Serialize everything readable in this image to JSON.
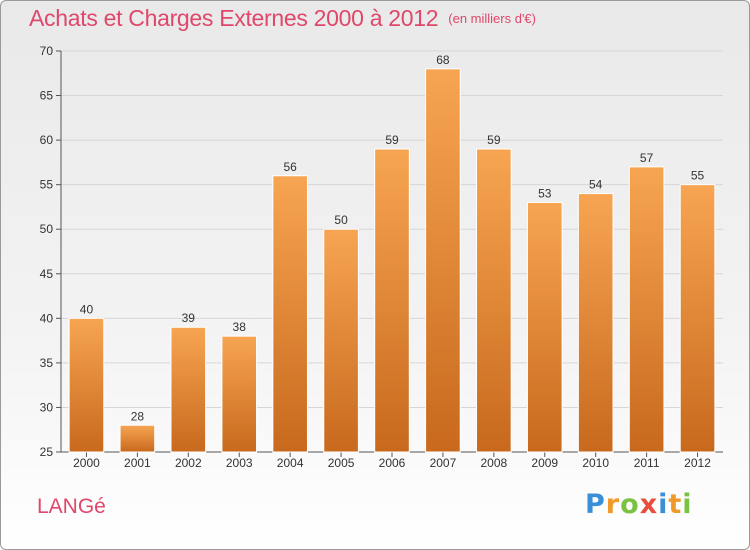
{
  "title": "Achats et Charges Externes 2000 à 2012",
  "unit": "(en milliers d'€)",
  "commune": "LANGé",
  "logo": {
    "letters": [
      "P",
      "r",
      "o",
      "x",
      "i",
      "t",
      "i"
    ],
    "colors": [
      "#3b8fd6",
      "#f09a2a",
      "#7cc242",
      "#e94e3c",
      "#3b8fd6",
      "#f09a2a",
      "#7cc242"
    ]
  },
  "colors": {
    "title": "#e0476a",
    "bar_top": "#f7a552",
    "bar_bottom": "#c8691d"
  },
  "chart_data": {
    "type": "bar",
    "title": "Achats et Charges Externes 2000 à 2012",
    "subtitle": "(en milliers d'€)",
    "categories": [
      "2000",
      "2001",
      "2002",
      "2003",
      "2004",
      "2005",
      "2006",
      "2007",
      "2008",
      "2009",
      "2010",
      "2011",
      "2012"
    ],
    "values": [
      40,
      28,
      39,
      38,
      56,
      50,
      59,
      68,
      59,
      53,
      54,
      57,
      55
    ],
    "ylim": [
      25,
      70
    ],
    "yticks": [
      25,
      30,
      35,
      40,
      45,
      50,
      55,
      60,
      65,
      70
    ],
    "grid": true,
    "legend": "none"
  }
}
